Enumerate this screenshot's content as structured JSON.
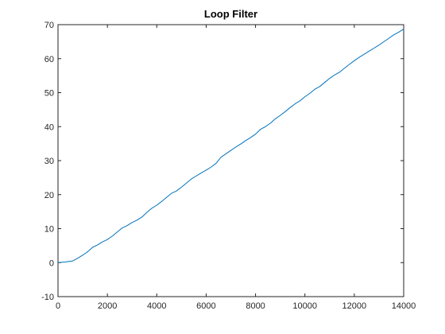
{
  "chart_data": {
    "type": "line",
    "title": "Loop Filter",
    "xlabel": "",
    "ylabel": "",
    "xlim": [
      0,
      14000
    ],
    "ylim": [
      -10,
      70
    ],
    "xticks": [
      0,
      2000,
      4000,
      6000,
      8000,
      10000,
      12000,
      14000
    ],
    "yticks": [
      -10,
      0,
      10,
      20,
      30,
      40,
      50,
      60,
      70
    ],
    "grid": false,
    "legend": "none",
    "series": [
      {
        "color": "#0072BD",
        "x": [
          0,
          300,
          600,
          800,
          1000,
          1200,
          1400,
          1600,
          1800,
          2000,
          2200,
          2400,
          2600,
          2800,
          3000,
          3200,
          3400,
          3600,
          3800,
          4000,
          4200,
          4400,
          4600,
          4800,
          5000,
          5200,
          5400,
          5600,
          5800,
          6000,
          6200,
          6400,
          6600,
          6800,
          7000,
          7200,
          7400,
          7600,
          7800,
          8000,
          8200,
          8400,
          8600,
          8800,
          9000,
          9200,
          9400,
          9600,
          9800,
          10000,
          10200,
          10400,
          10600,
          10800,
          11000,
          11200,
          11400,
          11600,
          11800,
          12000,
          12200,
          12400,
          12600,
          12800,
          13000,
          13200,
          13400,
          13600,
          13800,
          14000
        ],
        "y": [
          0,
          0.2,
          0.5,
          1.3,
          2.2,
          3.2,
          4.5,
          5.2,
          6.1,
          6.8,
          7.8,
          9.0,
          10.2,
          10.9,
          11.8,
          12.5,
          13.4,
          14.8,
          16.0,
          16.9,
          18.0,
          19.2,
          20.4,
          21.1,
          22.2,
          23.4,
          24.6,
          25.5,
          26.4,
          27.2,
          28.1,
          29.2,
          31.0,
          32.0,
          33.0,
          34.0,
          34.9,
          35.9,
          36.8,
          37.8,
          39.2,
          40.0,
          41.0,
          42.3,
          43.3,
          44.4,
          45.6,
          46.7,
          47.6,
          48.8,
          49.8,
          51.0,
          51.8,
          53.0,
          54.2,
          55.2,
          56.0,
          57.2,
          58.3,
          59.4,
          60.4,
          61.3,
          62.2,
          63.1,
          64.0,
          65.0,
          66.0,
          67.0,
          67.8,
          68.7
        ]
      }
    ]
  }
}
